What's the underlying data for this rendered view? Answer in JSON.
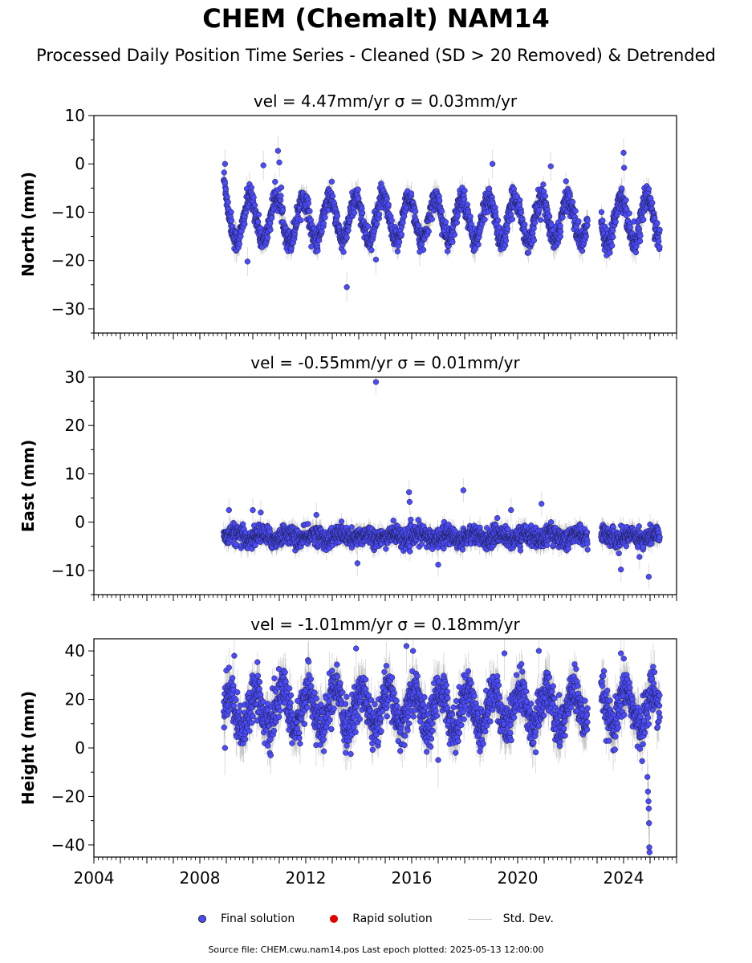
{
  "figure": {
    "title": "CHEM (Chemalt) NAM14",
    "subtitle": "Processed Daily Position Time Series - Cleaned (SD > 20 Removed) & Detrended",
    "footer": "Source file: CHEM.cwu.nam14.pos  Last epoch plotted: 2025-05-13 12:00:00"
  },
  "legend": {
    "items": [
      {
        "label": "Final solution",
        "color": "#4b4bfa",
        "kind": "dot"
      },
      {
        "label": "Rapid solution",
        "color": "#e00000",
        "kind": "dot"
      },
      {
        "label": "Std. Dev.",
        "color": "#c8c8c8",
        "kind": "line"
      }
    ]
  },
  "chart_data": [
    {
      "type": "scatter",
      "panel": "north",
      "title": "vel = 4.47mm/yr   σ = 0.03mm/yr",
      "ylabel": "North (mm)",
      "xlim": [
        2004.0,
        2026.0
      ],
      "ylim": [
        -35,
        10
      ],
      "yticks": [
        10,
        0,
        -10,
        -20,
        -30
      ],
      "data_start": 2008.9,
      "data_end": 2025.37,
      "gaps": [
        [
          2022.65,
          2023.15
        ]
      ],
      "model": {
        "mean": -11.5,
        "annual_amp": 4.5,
        "phase": 0.9,
        "noise": 1.2,
        "start_level": -3
      },
      "outliers": [
        [
          2008.95,
          0.0
        ],
        [
          2009.8,
          -20.2
        ],
        [
          2010.4,
          -0.3
        ],
        [
          2010.95,
          2.7
        ],
        [
          2011.0,
          0.3
        ],
        [
          2013.55,
          -25.5
        ],
        [
          2014.65,
          -19.8
        ],
        [
          2016.3,
          -18.2
        ],
        [
          2019.05,
          0.0
        ],
        [
          2021.25,
          -0.5
        ],
        [
          2024.0,
          2.3
        ],
        [
          2024.02,
          -0.8
        ]
      ],
      "color": "#4b4bfa"
    },
    {
      "type": "scatter",
      "panel": "east",
      "title": "vel = -0.55mm/yr   σ = 0.01mm/yr",
      "ylabel": "East (mm)",
      "xlim": [
        2004.0,
        2026.0
      ],
      "ylim": [
        -15,
        30
      ],
      "yticks": [
        30,
        20,
        10,
        0,
        -10
      ],
      "data_start": 2008.9,
      "data_end": 2025.37,
      "gaps": [
        [
          2022.65,
          2023.15
        ]
      ],
      "model": {
        "mean": -3.0,
        "annual_amp": 0.6,
        "phase": 0.3,
        "noise": 1.0,
        "start_level": -3
      },
      "outliers": [
        [
          2009.1,
          2.5
        ],
        [
          2010.0,
          2.5
        ],
        [
          2010.3,
          2.0
        ],
        [
          2012.4,
          1.5
        ],
        [
          2013.95,
          -8.5
        ],
        [
          2014.65,
          29.0
        ],
        [
          2015.9,
          6.2
        ],
        [
          2015.92,
          4.2
        ],
        [
          2017.95,
          6.6
        ],
        [
          2017.0,
          -8.8
        ],
        [
          2019.75,
          2.5
        ],
        [
          2020.9,
          3.8
        ],
        [
          2023.9,
          -9.8
        ],
        [
          2024.6,
          -7.2
        ],
        [
          2024.95,
          -11.3
        ]
      ],
      "color": "#4b4bfa"
    },
    {
      "type": "scatter",
      "panel": "height",
      "title": "vel = -1.01mm/yr   σ = 0.18mm/yr",
      "ylabel": "Height (mm)",
      "xlim": [
        2004.0,
        2026.0
      ],
      "ylim": [
        -45,
        45
      ],
      "yticks": [
        40,
        20,
        0,
        -20,
        -40
      ],
      "xticks": [
        2004,
        2008,
        2012,
        2016,
        2020,
        2024
      ],
      "data_start": 2008.9,
      "data_end": 2025.37,
      "gaps": [
        [
          2022.65,
          2023.15
        ]
      ],
      "model": {
        "mean": 16.0,
        "annual_amp": 8.0,
        "phase": 0.1,
        "noise": 4.5,
        "start_level": 16
      },
      "outliers": [
        [
          2008.95,
          0.0
        ],
        [
          2009.3,
          38.0
        ],
        [
          2013.9,
          41.0
        ],
        [
          2015.8,
          42.0
        ],
        [
          2016.05,
          40.0
        ],
        [
          2017.0,
          -5.0
        ],
        [
          2019.5,
          39.0
        ],
        [
          2020.8,
          40.0
        ],
        [
          2023.9,
          39.0
        ],
        [
          2024.9,
          -12.0
        ],
        [
          2024.92,
          -18.0
        ],
        [
          2024.94,
          -22.0
        ],
        [
          2024.95,
          -25.0
        ],
        [
          2024.96,
          -31.0
        ],
        [
          2024.97,
          -41.0
        ],
        [
          2024.98,
          -43.0
        ]
      ],
      "color": "#4b4bfa"
    }
  ]
}
